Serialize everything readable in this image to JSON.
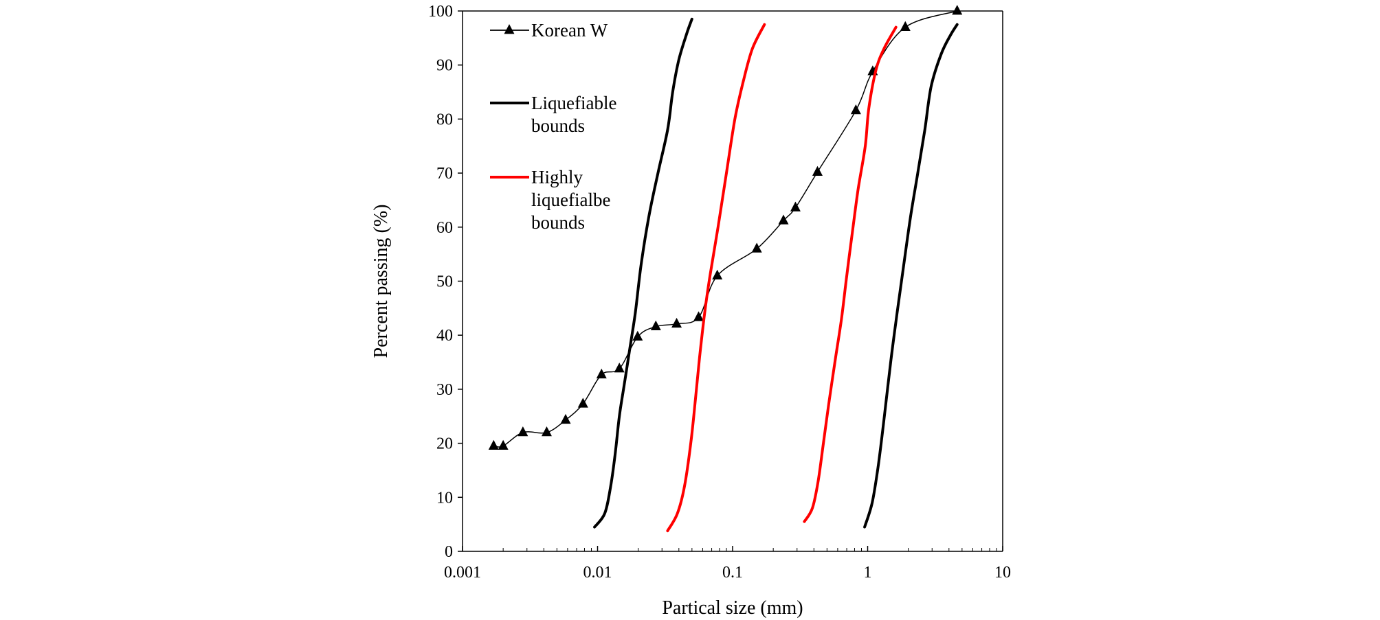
{
  "chart_data": {
    "type": "scatter",
    "title": "",
    "xlabel": "Partical  size  (mm)",
    "ylabel": "Percent  passing   (%)",
    "x_scale": "log",
    "xlim": [
      0.001,
      10
    ],
    "ylim": [
      0,
      100
    ],
    "x_ticks": [
      0.001,
      0.01,
      0.1,
      1,
      10
    ],
    "x_tick_labels": [
      "0.001",
      "0.01",
      "0.1",
      "1",
      "10"
    ],
    "y_ticks": [
      0,
      10,
      20,
      30,
      40,
      50,
      60,
      70,
      80,
      90,
      100
    ],
    "y_tick_labels": [
      "0",
      "10",
      "20",
      "30",
      "40",
      "50",
      "60",
      "70",
      "80",
      "90",
      "100"
    ],
    "grid": false,
    "legend_position": "top-left",
    "series": [
      {
        "name": "Korean W",
        "color": "#000000",
        "marker": "triangle",
        "line": "smooth",
        "points": [
          [
            0.0017,
            19.5
          ],
          [
            0.002,
            19.5
          ],
          [
            0.0028,
            22.0
          ],
          [
            0.0042,
            22.0
          ],
          [
            0.0058,
            24.3
          ],
          [
            0.0078,
            27.3
          ],
          [
            0.0107,
            32.7
          ],
          [
            0.0145,
            33.8
          ],
          [
            0.0198,
            39.7
          ],
          [
            0.027,
            41.6
          ],
          [
            0.0385,
            42.1
          ],
          [
            0.056,
            43.3
          ],
          [
            0.077,
            51.0
          ],
          [
            0.151,
            56.0
          ],
          [
            0.238,
            61.2
          ],
          [
            0.292,
            63.6
          ],
          [
            0.425,
            70.2
          ],
          [
            0.818,
            81.6
          ],
          [
            1.09,
            88.8
          ],
          [
            1.9,
            97.0
          ],
          [
            4.6,
            100.0
          ]
        ]
      },
      {
        "name": "Liquefiable bounds",
        "color": "#000000",
        "marker": "none",
        "line": "solid",
        "curves": [
          [
            [
              0.0095,
              4.5
            ],
            [
              0.0113,
              7.0
            ],
            [
              0.0125,
              12.0
            ],
            [
              0.0135,
              18.0
            ],
            [
              0.0145,
              25.0
            ],
            [
              0.0158,
              31.0
            ],
            [
              0.0172,
              37.0
            ],
            [
              0.019,
              44.0
            ],
            [
              0.021,
              53.0
            ],
            [
              0.024,
              62.0
            ],
            [
              0.028,
              70.0
            ],
            [
              0.033,
              78.0
            ],
            [
              0.036,
              85.0
            ],
            [
              0.04,
              91.0
            ],
            [
              0.046,
              96.0
            ],
            [
              0.05,
              98.5
            ]
          ],
          [
            [
              0.95,
              4.5
            ],
            [
              1.08,
              9.0
            ],
            [
              1.2,
              16.0
            ],
            [
              1.33,
              25.0
            ],
            [
              1.48,
              35.0
            ],
            [
              1.65,
              44.0
            ],
            [
              1.85,
              53.0
            ],
            [
              2.08,
              62.0
            ],
            [
              2.35,
              70.0
            ],
            [
              2.65,
              78.0
            ],
            [
              2.95,
              86.0
            ],
            [
              3.5,
              92.0
            ],
            [
              4.1,
              95.5
            ],
            [
              4.6,
              97.5
            ]
          ]
        ]
      },
      {
        "name": "Highly liquefialbe bounds",
        "color": "#ff0000",
        "marker": "none",
        "line": "solid",
        "curves": [
          [
            [
              0.033,
              3.8
            ],
            [
              0.039,
              7.0
            ],
            [
              0.044,
              12.0
            ],
            [
              0.049,
              20.0
            ],
            [
              0.053,
              28.0
            ],
            [
              0.057,
              36.0
            ],
            [
              0.062,
              44.0
            ],
            [
              0.068,
              51.0
            ],
            [
              0.078,
              60.0
            ],
            [
              0.09,
              70.0
            ],
            [
              0.104,
              80.0
            ],
            [
              0.12,
              87.0
            ],
            [
              0.14,
              93.0
            ],
            [
              0.172,
              97.5
            ]
          ],
          [
            [
              0.34,
              5.5
            ],
            [
              0.39,
              8.0
            ],
            [
              0.43,
              13.0
            ],
            [
              0.47,
              20.0
            ],
            [
              0.52,
              28.0
            ],
            [
              0.58,
              36.0
            ],
            [
              0.64,
              43.0
            ],
            [
              0.7,
              51.0
            ],
            [
              0.77,
              59.0
            ],
            [
              0.85,
              67.0
            ],
            [
              0.96,
              75.0
            ],
            [
              1.02,
              82.0
            ],
            [
              1.15,
              89.0
            ],
            [
              1.32,
              93.0
            ],
            [
              1.62,
              97.0
            ]
          ]
        ]
      }
    ],
    "legend": [
      {
        "label_lines": [
          "Korean W"
        ],
        "color": "#000000",
        "marker": "triangle"
      },
      {
        "label_lines": [
          "Liquefiable",
          "bounds"
        ],
        "color": "#000000",
        "marker": "none"
      },
      {
        "label_lines": [
          "Highly",
          "liquefialbe",
          "bounds"
        ],
        "color": "#ff0000",
        "marker": "none"
      }
    ]
  }
}
